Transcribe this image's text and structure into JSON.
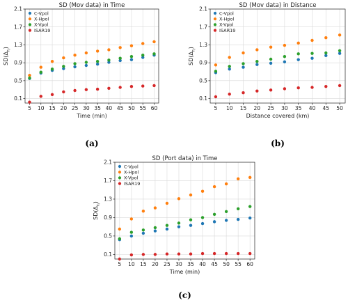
{
  "chart_data": [
    {
      "type": "scatter",
      "caption": "(a)",
      "title": "SD (Mov data) in Time",
      "xlabel": "Time (min)",
      "ylabel": "SD(Δ_{r_i})",
      "x": [
        5,
        10,
        15,
        20,
        25,
        30,
        35,
        40,
        45,
        50,
        55,
        60
      ],
      "xticks": [
        5,
        10,
        15,
        20,
        25,
        30,
        35,
        40,
        45,
        50,
        55,
        60
      ],
      "xlim": [
        3,
        62
      ],
      "yticks": [
        "0.1",
        "0.5",
        "0.9",
        "1.3",
        "1.7",
        "2.1"
      ],
      "ylim": [
        0.0,
        2.1
      ],
      "grid": true,
      "legend_position": "top-left",
      "series": [
        {
          "name": "C-Vpol",
          "color": "#1f77b4",
          "values": [
            0.55,
            0.67,
            0.73,
            0.77,
            0.81,
            0.84,
            0.87,
            0.91,
            0.95,
            0.97,
            1.02,
            1.07
          ]
        },
        {
          "name": "X-Hpol",
          "color": "#ff7f0e",
          "values": [
            0.62,
            0.8,
            0.93,
            1.01,
            1.07,
            1.12,
            1.16,
            1.19,
            1.24,
            1.28,
            1.33,
            1.37
          ]
        },
        {
          "name": "X-Vpol",
          "color": "#2ca02c",
          "values": [
            0.56,
            0.69,
            0.76,
            0.82,
            0.88,
            0.91,
            0.93,
            0.96,
            1.0,
            1.04,
            1.07,
            1.1
          ]
        },
        {
          "name": "ISAR19",
          "color": "#d62728",
          "values": [
            0.02,
            0.15,
            0.19,
            0.25,
            0.28,
            0.3,
            0.31,
            0.33,
            0.35,
            0.37,
            0.38,
            0.39
          ]
        }
      ]
    },
    {
      "type": "scatter",
      "caption": "(b)",
      "title": "SD (Mov data) in Distance",
      "xlabel": "Distance covered (km)",
      "ylabel": "SD(Δ_{r_i})",
      "x": [
        5,
        10,
        15,
        20,
        25,
        30,
        35,
        40,
        45,
        50
      ],
      "xticks": [
        5,
        10,
        15,
        20,
        25,
        30,
        35,
        40,
        45,
        50
      ],
      "xlim": [
        3,
        52
      ],
      "yticks": [
        "0.1",
        "0.5",
        "0.9",
        "1.3",
        "1.7",
        "2.1"
      ],
      "ylim": [
        0.0,
        2.1
      ],
      "grid": true,
      "legend_position": "top-left",
      "series": [
        {
          "name": "C-Vpol",
          "color": "#1f77b4",
          "values": [
            0.68,
            0.76,
            0.8,
            0.86,
            0.89,
            0.92,
            0.97,
            1.0,
            1.06,
            1.11
          ]
        },
        {
          "name": "X-Hpol",
          "color": "#ff7f0e",
          "values": [
            0.85,
            1.02,
            1.12,
            1.19,
            1.25,
            1.29,
            1.34,
            1.4,
            1.46,
            1.52
          ]
        },
        {
          "name": "X-Vpol",
          "color": "#2ca02c",
          "values": [
            0.71,
            0.82,
            0.88,
            0.93,
            0.98,
            1.04,
            1.1,
            1.11,
            1.12,
            1.17
          ]
        },
        {
          "name": "ISAR19",
          "color": "#d62728",
          "values": [
            0.14,
            0.2,
            0.23,
            0.27,
            0.29,
            0.32,
            0.34,
            0.35,
            0.37,
            0.39
          ]
        }
      ]
    },
    {
      "type": "scatter",
      "caption": "(c)",
      "title": "SD (Port data) in Time",
      "xlabel": "Time (min)",
      "ylabel": "SD(Δ_{r_i})",
      "x": [
        5,
        10,
        15,
        20,
        25,
        30,
        35,
        40,
        45,
        50,
        55,
        60
      ],
      "xticks": [
        5,
        10,
        15,
        20,
        25,
        30,
        35,
        40,
        45,
        50,
        55,
        60
      ],
      "xlim": [
        3,
        62
      ],
      "yticks": [
        "0.1",
        "0.5",
        "0.9",
        "1.3",
        "1.7",
        "2.1"
      ],
      "ylim": [
        0.0,
        2.1
      ],
      "grid": true,
      "legend_position": "top-left",
      "series": [
        {
          "name": "C-Vpol",
          "color": "#1f77b4",
          "values": [
            0.42,
            0.5,
            0.56,
            0.61,
            0.65,
            0.7,
            0.73,
            0.77,
            0.81,
            0.84,
            0.86,
            0.89
          ]
        },
        {
          "name": "X-Hpol",
          "color": "#ff7f0e",
          "values": [
            0.65,
            0.87,
            1.04,
            1.11,
            1.21,
            1.31,
            1.39,
            1.47,
            1.57,
            1.63,
            1.74,
            1.77
          ]
        },
        {
          "name": "X-Vpol",
          "color": "#2ca02c",
          "values": [
            0.44,
            0.58,
            0.63,
            0.68,
            0.73,
            0.78,
            0.85,
            0.9,
            0.97,
            1.03,
            1.09,
            1.14
          ]
        },
        {
          "name": "ISAR19",
          "color": "#d62728",
          "values": [
            0.0,
            0.09,
            0.1,
            0.1,
            0.11,
            0.11,
            0.11,
            0.12,
            0.12,
            0.12,
            0.12,
            0.12
          ]
        }
      ]
    }
  ]
}
